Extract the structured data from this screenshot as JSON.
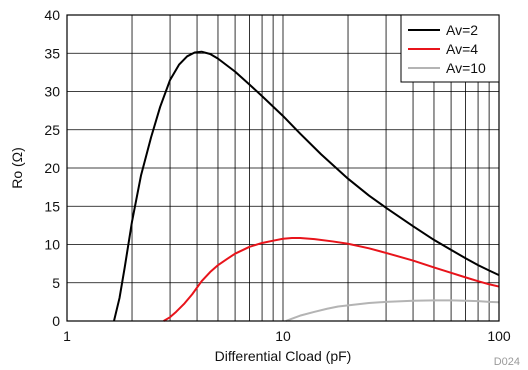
{
  "chart_data": {
    "type": "line",
    "xlabel": "Differential Cload (pF)",
    "ylabel": "Ro (Ω)",
    "xscale": "log",
    "xlim": [
      1,
      100
    ],
    "ylim": [
      0,
      40
    ],
    "x_ticks": [
      "1",
      "10",
      "100"
    ],
    "y_ticks": [
      "0",
      "5",
      "10",
      "15",
      "20",
      "25",
      "30",
      "35",
      "40"
    ],
    "grid": true,
    "legend_position": "top-right",
    "code": "D024",
    "series": [
      {
        "name": "Av=2",
        "color": "#000000",
        "points": [
          [
            1.65,
            0
          ],
          [
            1.75,
            3
          ],
          [
            1.85,
            7
          ],
          [
            2.0,
            13
          ],
          [
            2.2,
            19
          ],
          [
            2.45,
            24
          ],
          [
            2.7,
            28
          ],
          [
            3.0,
            31.5
          ],
          [
            3.3,
            33.5
          ],
          [
            3.6,
            34.6
          ],
          [
            3.9,
            35.1
          ],
          [
            4.2,
            35.2
          ],
          [
            4.6,
            34.9
          ],
          [
            5.0,
            34.3
          ],
          [
            6.0,
            32.6
          ],
          [
            7.0,
            30.9
          ],
          [
            8.0,
            29.4
          ],
          [
            10.0,
            26.8
          ],
          [
            12.0,
            24.5
          ],
          [
            15.0,
            21.8
          ],
          [
            20.0,
            18.6
          ],
          [
            25.0,
            16.4
          ],
          [
            30.0,
            14.8
          ],
          [
            40.0,
            12.4
          ],
          [
            50.0,
            10.6
          ],
          [
            60.0,
            9.3
          ],
          [
            70.0,
            8.2
          ],
          [
            80.0,
            7.3
          ],
          [
            90.0,
            6.6
          ],
          [
            100.0,
            6.0
          ]
        ]
      },
      {
        "name": "Av=4",
        "color": "#e8141b",
        "points": [
          [
            2.8,
            0
          ],
          [
            3.0,
            0.5
          ],
          [
            3.2,
            1.2
          ],
          [
            3.5,
            2.3
          ],
          [
            3.8,
            3.5
          ],
          [
            4.2,
            5.2
          ],
          [
            4.6,
            6.4
          ],
          [
            5.0,
            7.3
          ],
          [
            5.5,
            8.1
          ],
          [
            6.0,
            8.8
          ],
          [
            7.0,
            9.7
          ],
          [
            8.0,
            10.2
          ],
          [
            9.0,
            10.5
          ],
          [
            10.0,
            10.75
          ],
          [
            11.0,
            10.85
          ],
          [
            12.0,
            10.85
          ],
          [
            14.0,
            10.7
          ],
          [
            17.0,
            10.4
          ],
          [
            20.0,
            10.1
          ],
          [
            25.0,
            9.5
          ],
          [
            30.0,
            8.9
          ],
          [
            40.0,
            7.9
          ],
          [
            50.0,
            7.0
          ],
          [
            60.0,
            6.3
          ],
          [
            70.0,
            5.7
          ],
          [
            80.0,
            5.2
          ],
          [
            90.0,
            4.8
          ],
          [
            100.0,
            4.5
          ]
        ]
      },
      {
        "name": "Av=10",
        "color": "#b4b4b4",
        "points": [
          [
            10.3,
            0
          ],
          [
            11.0,
            0.3
          ],
          [
            12.0,
            0.7
          ],
          [
            14.0,
            1.2
          ],
          [
            16.0,
            1.6
          ],
          [
            18.0,
            1.9
          ],
          [
            20.0,
            2.05
          ],
          [
            25.0,
            2.35
          ],
          [
            30.0,
            2.5
          ],
          [
            40.0,
            2.65
          ],
          [
            50.0,
            2.7
          ],
          [
            60.0,
            2.7
          ],
          [
            70.0,
            2.65
          ],
          [
            80.0,
            2.6
          ],
          [
            90.0,
            2.5
          ],
          [
            100.0,
            2.45
          ]
        ]
      }
    ]
  }
}
